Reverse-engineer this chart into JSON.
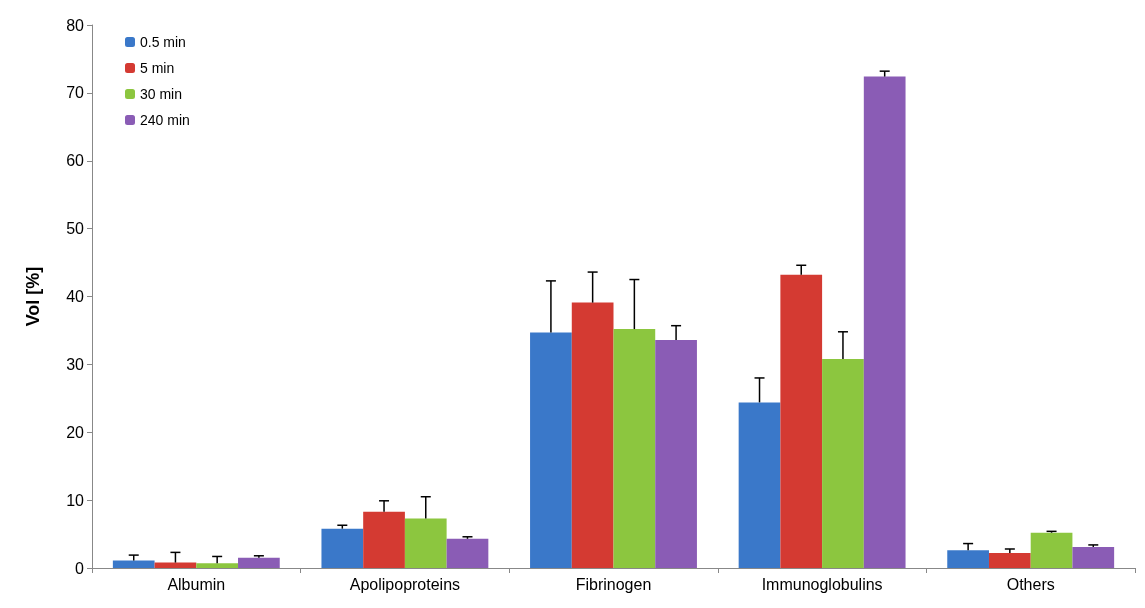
{
  "chart_data": {
    "type": "bar",
    "ylabel": "Vol [%]",
    "categories": [
      "Albumin",
      "Apolipoproteins",
      "Fibrinogen",
      "Immunoglobulins",
      "Others"
    ],
    "series": [
      {
        "name": "0.5 min",
        "color": "#3a78c9",
        "values": [
          1.1,
          5.8,
          34.7,
          24.4,
          2.6
        ],
        "errors": [
          [
            1.1,
            1.9
          ],
          [
            5.8,
            6.3
          ],
          [
            34.7,
            42.3
          ],
          [
            24.4,
            28.0
          ],
          [
            2.6,
            3.6
          ]
        ]
      },
      {
        "name": "5 min",
        "color": "#d43a32",
        "values": [
          0.8,
          8.3,
          39.1,
          43.2,
          2.2
        ],
        "errors": [
          [
            0.8,
            2.3
          ],
          [
            8.3,
            9.9
          ],
          [
            39.1,
            43.6
          ],
          [
            43.2,
            44.6
          ],
          [
            2.2,
            2.8
          ]
        ]
      },
      {
        "name": "30 min",
        "color": "#8cc63f",
        "values": [
          0.7,
          7.3,
          35.2,
          30.8,
          5.2
        ],
        "errors": [
          [
            0.7,
            1.7
          ],
          [
            7.3,
            10.5
          ],
          [
            35.2,
            42.5
          ],
          [
            30.8,
            34.8
          ],
          [
            5.2,
            5.4
          ]
        ]
      },
      {
        "name": "240 min",
        "color": "#8a5cb5",
        "values": [
          1.5,
          4.3,
          33.6,
          72.4,
          3.1
        ],
        "errors": [
          [
            1.5,
            1.8
          ],
          [
            4.3,
            4.6
          ],
          [
            33.6,
            35.7
          ],
          [
            72.4,
            73.2
          ],
          [
            3.1,
            3.4
          ]
        ]
      }
    ],
    "ylim": [
      0,
      80
    ],
    "yticks": [
      0,
      10,
      20,
      30,
      40,
      50,
      60,
      70,
      80
    ],
    "grid": false,
    "legend": "top left"
  }
}
